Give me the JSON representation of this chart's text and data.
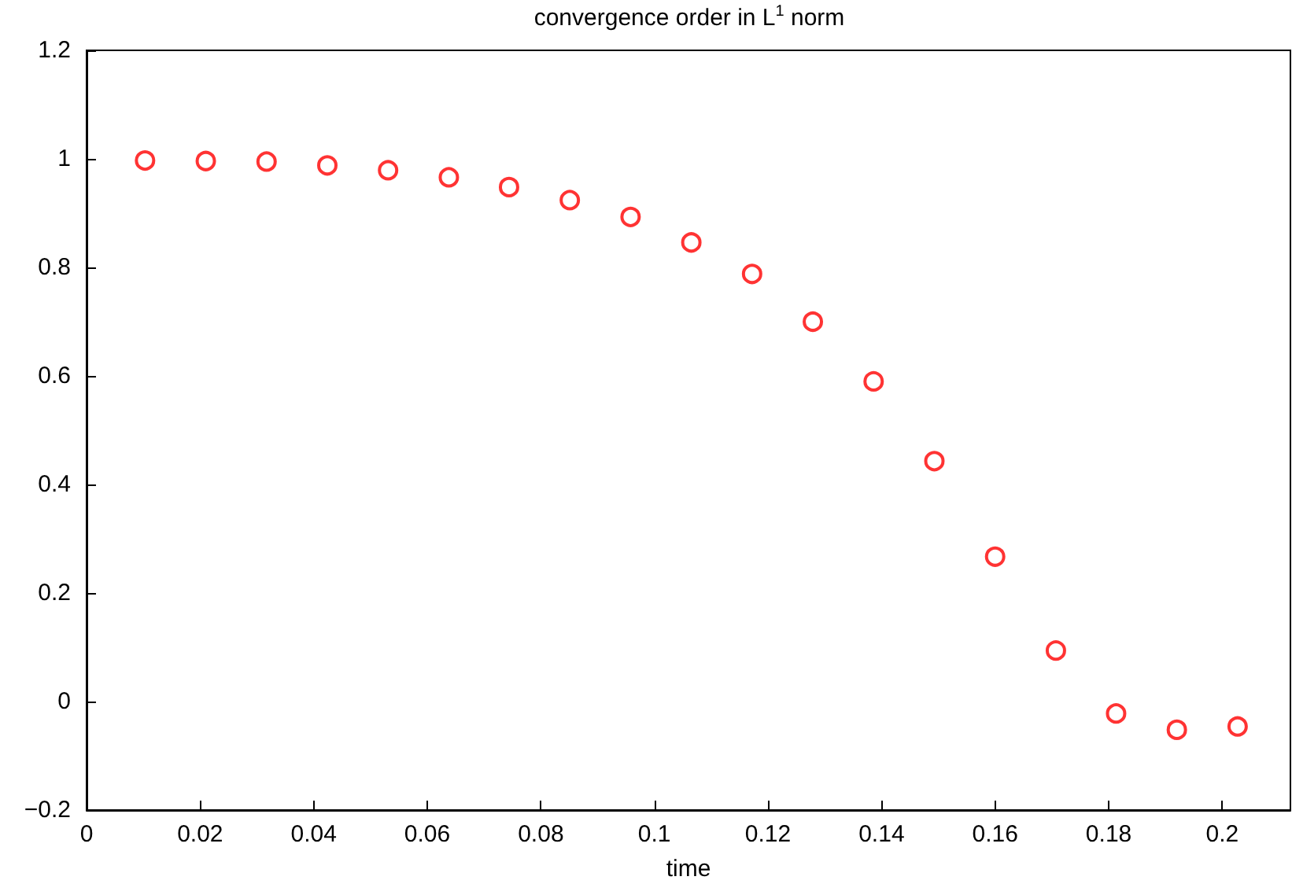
{
  "chart_data": {
    "type": "scatter",
    "title": "convergence order in L$^{1}$ norm",
    "xlabel": "time",
    "x": [
      0.0103,
      0.021,
      0.0317,
      0.0424,
      0.0531,
      0.0638,
      0.0744,
      0.0851,
      0.0958,
      0.1065,
      0.1172,
      0.1279,
      0.1386,
      0.1493,
      0.16,
      0.1707,
      0.1813,
      0.192,
      0.2027
    ],
    "series": [
      {
        "color": "#ff0000",
        "values": [
          0.997,
          0.996,
          0.995,
          0.988,
          0.979,
          0.966,
          0.948,
          0.924,
          0.893,
          0.846,
          0.788,
          0.7,
          0.59,
          0.443,
          0.267,
          0.094,
          -0.022,
          -0.052,
          -0.046
        ]
      }
    ],
    "xlim": [
      0,
      0.212
    ],
    "xticks": [
      0,
      0.02,
      0.04,
      0.06,
      0.08,
      0.1,
      0.12,
      0.14,
      0.16,
      0.18,
      0.2
    ],
    "ylim": [
      -0.2,
      1.2
    ],
    "yticks": [
      {
        "value": -0.2,
        "label": "−0.2"
      },
      0,
      0.2,
      0.4,
      0.6,
      0.8,
      1,
      1.2
    ],
    "grid": false,
    "marker": "circle"
  }
}
